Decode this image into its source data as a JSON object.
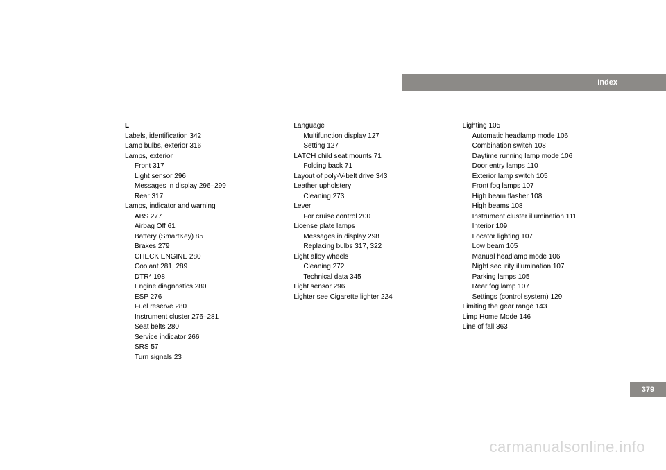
{
  "header": {
    "title": "Index"
  },
  "page_number": "379",
  "watermark": "carmanualsonline.info",
  "columns": {
    "col1": {
      "letter": "L",
      "entries": [
        {
          "text": "Labels, identification 342",
          "indent": 0
        },
        {
          "text": "Lamp bulbs, exterior 316",
          "indent": 0
        },
        {
          "text": "Lamps, exterior",
          "indent": 0
        },
        {
          "text": "Front 317",
          "indent": 1
        },
        {
          "text": "Light sensor 296",
          "indent": 1
        },
        {
          "text": "Messages in display 296–299",
          "indent": 1
        },
        {
          "text": "Rear 317",
          "indent": 1
        },
        {
          "text": "Lamps, indicator and warning",
          "indent": 0
        },
        {
          "text": "ABS 277",
          "indent": 1
        },
        {
          "text": "Airbag Off 61",
          "indent": 1
        },
        {
          "text": "Battery (SmartKey) 85",
          "indent": 1
        },
        {
          "text": "Brakes 279",
          "indent": 1
        },
        {
          "text": "CHECK ENGINE 280",
          "indent": 1
        },
        {
          "text": "Coolant 281, 289",
          "indent": 1
        },
        {
          "text": "DTR* 198",
          "indent": 1
        },
        {
          "text": "Engine diagnostics 280",
          "indent": 1
        },
        {
          "text": "ESP 276",
          "indent": 1
        },
        {
          "text": "Fuel reserve 280",
          "indent": 1
        },
        {
          "text": "Instrument cluster 276–281",
          "indent": 1
        },
        {
          "text": "Seat belts 280",
          "indent": 1
        },
        {
          "text": "Service indicator 266",
          "indent": 1
        },
        {
          "text": "SRS 57",
          "indent": 1
        },
        {
          "text": "Turn signals 23",
          "indent": 1
        }
      ]
    },
    "col2": {
      "entries": [
        {
          "text": "Language",
          "indent": 0
        },
        {
          "text": "Multifunction display 127",
          "indent": 1
        },
        {
          "text": "Setting 127",
          "indent": 1
        },
        {
          "text": "LATCH child seat mounts 71",
          "indent": 0
        },
        {
          "text": "Folding back 71",
          "indent": 1
        },
        {
          "text": "Layout of poly-V-belt drive 343",
          "indent": 0
        },
        {
          "text": "Leather upholstery",
          "indent": 0
        },
        {
          "text": "Cleaning 273",
          "indent": 1
        },
        {
          "text": "Lever",
          "indent": 0
        },
        {
          "text": "For cruise control 200",
          "indent": 1
        },
        {
          "text": "License plate lamps",
          "indent": 0
        },
        {
          "text": "Messages in display 298",
          "indent": 1
        },
        {
          "text": "Replacing bulbs 317, 322",
          "indent": 1
        },
        {
          "text": "Light alloy wheels",
          "indent": 0
        },
        {
          "text": "Cleaning 272",
          "indent": 1
        },
        {
          "text": "Technical data 345",
          "indent": 1
        },
        {
          "text": "Light sensor 296",
          "indent": 0
        },
        {
          "text": "Lighter see Cigarette lighter 224",
          "indent": 0
        }
      ]
    },
    "col3": {
      "entries": [
        {
          "text": "Lighting 105",
          "indent": 0
        },
        {
          "text": "Automatic headlamp mode 106",
          "indent": 1
        },
        {
          "text": "Combination switch 108",
          "indent": 1
        },
        {
          "text": "Daytime running lamp mode 106",
          "indent": 1
        },
        {
          "text": "Door entry lamps 110",
          "indent": 1
        },
        {
          "text": "Exterior lamp switch 105",
          "indent": 1
        },
        {
          "text": "Front fog lamps 107",
          "indent": 1
        },
        {
          "text": "High beam flasher 108",
          "indent": 1
        },
        {
          "text": "High beams 108",
          "indent": 1
        },
        {
          "text": "Instrument cluster illumination 111",
          "indent": 1
        },
        {
          "text": "Interior 109",
          "indent": 1
        },
        {
          "text": "Locator lighting 107",
          "indent": 1
        },
        {
          "text": "Low beam 105",
          "indent": 1
        },
        {
          "text": "Manual headlamp mode 106",
          "indent": 1
        },
        {
          "text": "Night security illumination 107",
          "indent": 1
        },
        {
          "text": "Parking lamps 105",
          "indent": 1
        },
        {
          "text": "Rear fog lamp 107",
          "indent": 1
        },
        {
          "text": "Settings (control system) 129",
          "indent": 1
        },
        {
          "text": "Limiting the gear range 143",
          "indent": 0
        },
        {
          "text": "Limp Home Mode 146",
          "indent": 0
        },
        {
          "text": "Line of fall 363",
          "indent": 0
        }
      ]
    }
  }
}
